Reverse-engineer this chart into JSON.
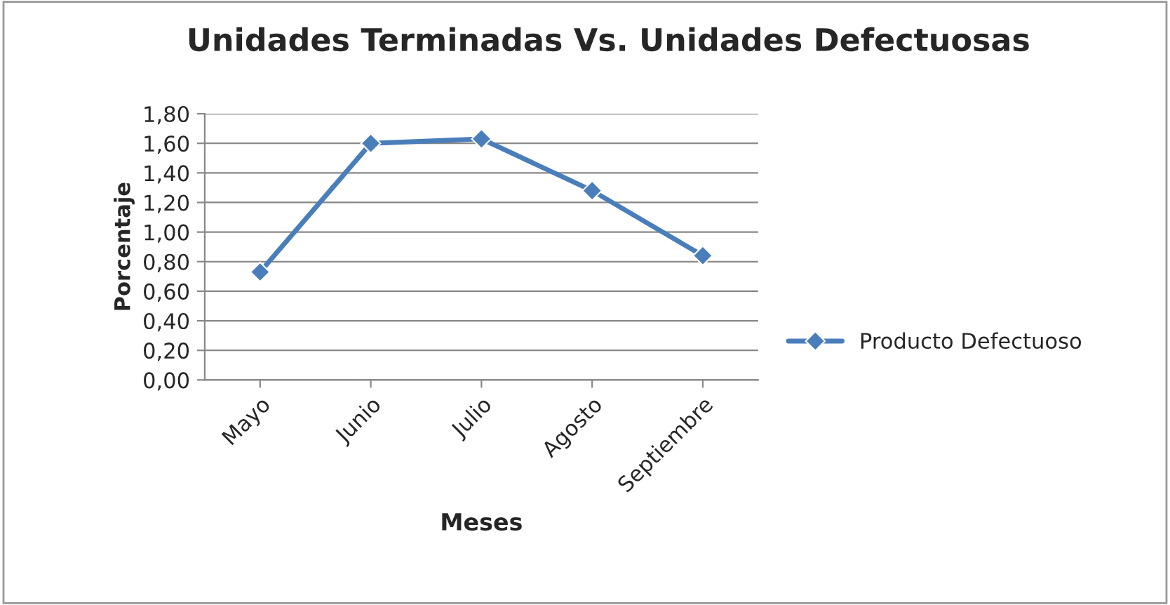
{
  "chart_data": {
    "type": "line",
    "title": "Unidades Terminadas Vs. Unidades Defectuosas",
    "xlabel": "Meses",
    "ylabel": "Porcentaje",
    "categories": [
      "Mayo",
      "Junio",
      "Julio",
      "Agosto",
      "Septiembre"
    ],
    "series": [
      {
        "name": "Producto Defectuoso",
        "color": "#4a7ebb",
        "values": [
          0.73,
          1.6,
          1.63,
          1.28,
          0.84
        ]
      }
    ],
    "ylim": [
      0,
      1.8
    ],
    "yticks": [
      {
        "value": 0,
        "label": "0,00"
      },
      {
        "value": 0.2,
        "label": "0,20"
      },
      {
        "value": 0.4,
        "label": "0,40"
      },
      {
        "value": 0.6,
        "label": "0,60"
      },
      {
        "value": 0.8,
        "label": "0,80"
      },
      {
        "value": 1.0,
        "label": "1,00"
      },
      {
        "value": 1.2,
        "label": "1,20"
      },
      {
        "value": 1.4,
        "label": "1,40"
      },
      {
        "value": 1.6,
        "label": "1,60"
      },
      {
        "value": 1.8,
        "label": "1,80"
      }
    ],
    "grid": "y",
    "legend": "right",
    "marker": "diamond",
    "line_style": "solid"
  }
}
